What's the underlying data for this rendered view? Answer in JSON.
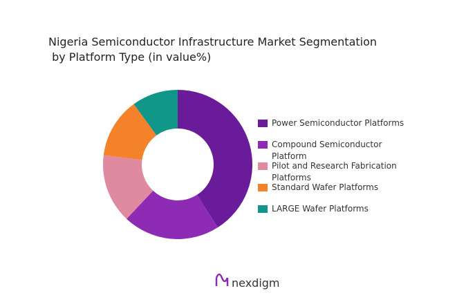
{
  "chart_data": {
    "type": "pie",
    "title": [
      "Nigeria Semiconductor Infrastructure Market Segmentation",
      " by Platform Type (in value%)"
    ],
    "categories": [
      "Power Semiconductor Platforms",
      "Compound Semiconductor Platform",
      "Pilot and Research Fabrication Platforms",
      "Standard Wafer Platforms",
      "LARGE Wafer Platforms"
    ],
    "values": [
      41,
      21,
      15,
      13,
      10
    ],
    "colors": [
      "#6a1b9a",
      "#8e2bb5",
      "#e08aa0",
      "#f4822a",
      "#0f9688"
    ],
    "donut": true,
    "brand": "nexdigm"
  }
}
